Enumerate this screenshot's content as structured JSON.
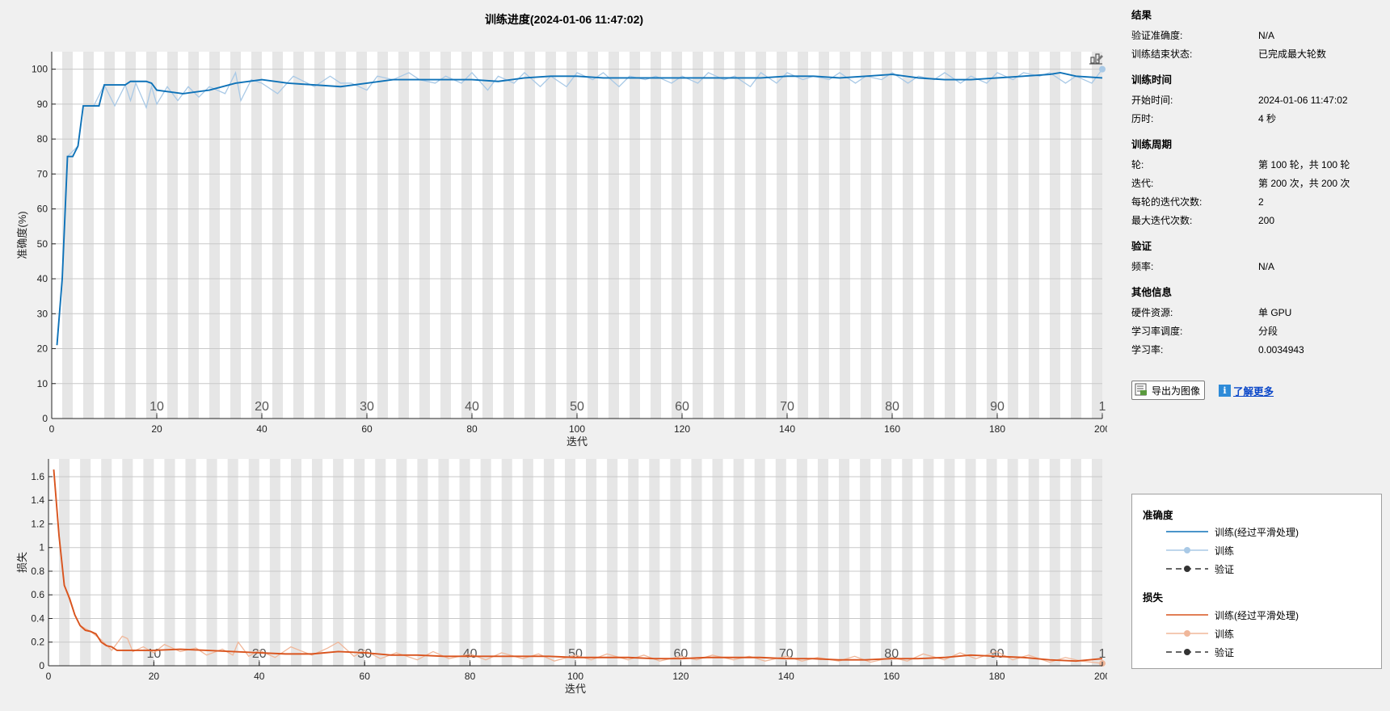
{
  "window": {
    "title": "训练进度(2024-01-06 11:47:02)"
  },
  "colors": {
    "accuracy_smoothed": "#0e72b8",
    "accuracy_raw": "#a9c9e6",
    "loss_smoothed": "#d9541e",
    "loss_raw": "#f0b79a",
    "validation": "#333333",
    "epoch_band": "#e6e6e6"
  },
  "results": {
    "heading": "结果",
    "rows": [
      {
        "label": "验证准确度:",
        "value": "N/A"
      },
      {
        "label": "训练结束状态:",
        "value": "已完成最大轮数"
      }
    ]
  },
  "training_time": {
    "heading": "训练时间",
    "rows": [
      {
        "label": "开始时间:",
        "value": "2024-01-06 11:47:02"
      },
      {
        "label": "历时:",
        "value": "4 秒"
      }
    ]
  },
  "training_cycle": {
    "heading": "训练周期",
    "rows": [
      {
        "label": "轮:",
        "value": "第 100 轮，共 100 轮"
      },
      {
        "label": "迭代:",
        "value": "第 200 次，共 200 次"
      },
      {
        "label": "每轮的迭代次数:",
        "value": "2"
      },
      {
        "label": "最大迭代次数:",
        "value": "200"
      }
    ]
  },
  "validation": {
    "heading": "验证",
    "rows": [
      {
        "label": "频率:",
        "value": "N/A"
      }
    ]
  },
  "other_info": {
    "heading": "其他信息",
    "rows": [
      {
        "label": "硬件资源:",
        "value": "单 GPU"
      },
      {
        "label": "学习率调度:",
        "value": "分段"
      },
      {
        "label": "学习率:",
        "value": "0.0034943"
      }
    ]
  },
  "actions": {
    "export_label": "导出为图像",
    "export_icon": "export-image-icon",
    "learn_more_label": "了解更多",
    "learn_more_icon": "info-icon"
  },
  "legend": {
    "accuracy_heading": "准确度",
    "loss_heading": "损失",
    "smoothed_label": "训练(经过平滑处理)",
    "train_label": "训练",
    "validation_label": "验证"
  },
  "chart_data": [
    {
      "type": "line",
      "title": "训练进度(2024-01-06 11:47:02)",
      "xlabel": "迭代",
      "ylabel": "准确度(%)",
      "xlim": [
        0,
        200
      ],
      "ylim": [
        0,
        105
      ],
      "x_ticks": [
        0,
        20,
        40,
        60,
        80,
        100,
        120,
        140,
        160,
        180,
        200
      ],
      "y_ticks": [
        0,
        10,
        20,
        30,
        40,
        50,
        60,
        70,
        80,
        90,
        100
      ],
      "epoch_labels": [
        "10",
        "20",
        "30",
        "40",
        "50",
        "60",
        "70",
        "80",
        "90",
        "1"
      ],
      "grid": true,
      "series": [
        {
          "name": "训练(经过平滑处理)",
          "x": [
            1,
            2,
            3,
            4,
            5,
            6,
            8,
            9,
            10,
            14,
            15,
            16,
            17,
            18,
            19,
            20,
            25,
            30,
            35,
            40,
            45,
            50,
            55,
            60,
            65,
            70,
            75,
            80,
            85,
            90,
            95,
            100,
            105,
            110,
            115,
            120,
            125,
            130,
            135,
            140,
            145,
            150,
            155,
            160,
            165,
            170,
            175,
            180,
            185,
            190,
            192,
            195,
            200
          ],
          "y": [
            21,
            40,
            75,
            75,
            78,
            89.5,
            89.5,
            89.5,
            95.5,
            95.5,
            96.5,
            96.5,
            96.5,
            96.5,
            96,
            94,
            93,
            94,
            96,
            97,
            96,
            95.5,
            95,
            96,
            97,
            97,
            97,
            97,
            96.5,
            97.5,
            98,
            98,
            97.5,
            97.5,
            97.5,
            97.5,
            97.5,
            97.5,
            97.5,
            98,
            98,
            97.5,
            98,
            98.5,
            97.5,
            97,
            97,
            97.5,
            98,
            98.5,
            99,
            98,
            97.5
          ]
        },
        {
          "name": "训练",
          "x": [
            1,
            2,
            3,
            5,
            6,
            8,
            10,
            12,
            14,
            15,
            16,
            18,
            19,
            20,
            22,
            24,
            26,
            28,
            30,
            33,
            35,
            36,
            38,
            40,
            43,
            46,
            50,
            53,
            55,
            57,
            60,
            62,
            65,
            68,
            70,
            73,
            75,
            78,
            80,
            83,
            85,
            88,
            90,
            93,
            95,
            98,
            100,
            103,
            105,
            108,
            110,
            113,
            115,
            118,
            120,
            123,
            125,
            128,
            130,
            133,
            135,
            138,
            140,
            143,
            145,
            148,
            150,
            153,
            155,
            158,
            160,
            163,
            165,
            168,
            170,
            173,
            175,
            178,
            180,
            183,
            185,
            188,
            190,
            193,
            195,
            198,
            200
          ],
          "y": [
            21,
            40,
            75,
            78,
            89.5,
            89.5,
            95.5,
            89.5,
            95.5,
            91,
            96,
            89,
            95,
            90,
            95,
            91,
            95,
            92,
            95,
            93,
            99,
            91,
            97,
            96,
            93,
            98,
            95,
            98,
            96,
            96,
            94,
            98,
            97,
            99,
            97,
            96,
            98,
            96,
            99,
            94,
            98,
            96,
            99,
            95,
            98,
            95,
            99,
            97,
            99,
            95,
            98,
            97,
            98,
            96,
            98,
            96,
            99,
            97,
            98,
            95,
            99,
            96,
            99,
            97,
            98,
            97,
            99,
            96,
            98,
            97,
            99,
            96,
            98,
            97,
            99,
            96,
            98,
            96,
            99,
            97,
            99,
            98,
            99,
            96,
            98,
            96,
            100
          ]
        }
      ]
    },
    {
      "type": "line",
      "title": "",
      "xlabel": "迭代",
      "ylabel": "损失",
      "xlim": [
        0,
        200
      ],
      "ylim": [
        0,
        1.75
      ],
      "x_ticks": [
        0,
        20,
        40,
        60,
        80,
        100,
        120,
        140,
        160,
        180,
        200
      ],
      "y_ticks": [
        0,
        0.2,
        0.4,
        0.6,
        0.8,
        1,
        1.2,
        1.4,
        1.6
      ],
      "y_tick_labels": [
        "0",
        "0.2",
        "0.4",
        "0.6",
        "0.8",
        "1",
        "1.2",
        "1.4",
        "1.6"
      ],
      "epoch_labels": [
        "10",
        "20",
        "30",
        "40",
        "50",
        "60",
        "70",
        "80",
        "90",
        "1"
      ],
      "grid": true,
      "series": [
        {
          "name": "训练(经过平滑处理)",
          "x": [
            1,
            2,
            3,
            4,
            5,
            6,
            7,
            8,
            9,
            10,
            11,
            12,
            13,
            15,
            20,
            25,
            30,
            35,
            40,
            45,
            50,
            55,
            60,
            65,
            70,
            75,
            80,
            85,
            90,
            95,
            100,
            105,
            110,
            115,
            120,
            125,
            130,
            135,
            140,
            145,
            150,
            155,
            160,
            165,
            170,
            175,
            180,
            185,
            190,
            195,
            200
          ],
          "y": [
            1.66,
            1.1,
            0.68,
            0.57,
            0.43,
            0.34,
            0.3,
            0.29,
            0.27,
            0.2,
            0.17,
            0.16,
            0.13,
            0.13,
            0.13,
            0.14,
            0.13,
            0.12,
            0.11,
            0.1,
            0.1,
            0.12,
            0.11,
            0.09,
            0.09,
            0.08,
            0.08,
            0.08,
            0.08,
            0.08,
            0.07,
            0.07,
            0.07,
            0.06,
            0.06,
            0.07,
            0.07,
            0.07,
            0.06,
            0.06,
            0.05,
            0.05,
            0.06,
            0.06,
            0.07,
            0.09,
            0.08,
            0.07,
            0.05,
            0.04,
            0.06
          ]
        },
        {
          "name": "训练",
          "x": [
            1,
            2,
            3,
            5,
            6,
            8,
            10,
            12,
            14,
            15,
            16,
            18,
            20,
            22,
            25,
            28,
            30,
            33,
            35,
            36,
            38,
            40,
            43,
            46,
            50,
            53,
            55,
            58,
            60,
            63,
            66,
            70,
            73,
            76,
            80,
            83,
            86,
            90,
            93,
            96,
            100,
            103,
            106,
            110,
            113,
            116,
            120,
            123,
            126,
            130,
            133,
            136,
            140,
            143,
            146,
            150,
            153,
            156,
            160,
            163,
            166,
            170,
            173,
            176,
            180,
            183,
            186,
            190,
            193,
            196,
            200
          ],
          "y": [
            1.66,
            1.1,
            0.68,
            0.43,
            0.34,
            0.29,
            0.22,
            0.13,
            0.25,
            0.23,
            0.12,
            0.16,
            0.11,
            0.18,
            0.12,
            0.15,
            0.09,
            0.14,
            0.09,
            0.2,
            0.08,
            0.13,
            0.07,
            0.16,
            0.09,
            0.15,
            0.2,
            0.08,
            0.13,
            0.06,
            0.11,
            0.05,
            0.12,
            0.06,
            0.1,
            0.05,
            0.11,
            0.06,
            0.1,
            0.04,
            0.09,
            0.05,
            0.1,
            0.05,
            0.09,
            0.04,
            0.08,
            0.05,
            0.09,
            0.05,
            0.08,
            0.04,
            0.08,
            0.04,
            0.07,
            0.04,
            0.08,
            0.03,
            0.07,
            0.04,
            0.1,
            0.05,
            0.11,
            0.06,
            0.12,
            0.05,
            0.09,
            0.03,
            0.07,
            0.04,
            0.02
          ]
        }
      ]
    }
  ]
}
